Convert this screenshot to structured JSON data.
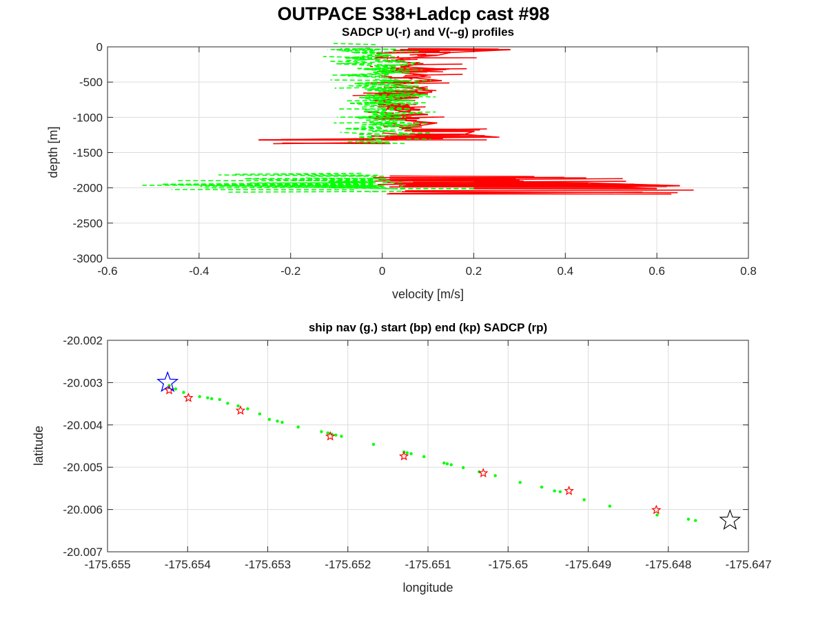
{
  "figure": {
    "title": "OUTPACE S38+Ladcp cast #98"
  },
  "chart_data": [
    {
      "type": "line",
      "title": "SADCP U(-r) and V(--g) profiles",
      "xlabel": "velocity [m/s]",
      "ylabel": "depth [m]",
      "xlim": [
        -0.6,
        0.8
      ],
      "ylim": [
        -3000,
        0
      ],
      "xticks": [
        "-0.6",
        "-0.4",
        "-0.2",
        "0",
        "0.2",
        "0.4",
        "0.6",
        "0.8"
      ],
      "yticks": [
        "0",
        "-500",
        "-1000",
        "-1500",
        "-2000",
        "-2500",
        "-3000"
      ],
      "xtick_values": [
        -0.6,
        -0.4,
        -0.2,
        0,
        0.2,
        0.4,
        0.6,
        0.8
      ],
      "ytick_values": [
        0,
        -500,
        -1000,
        -1500,
        -2000,
        -2500,
        -3000
      ],
      "grid": true,
      "series": [
        {
          "style": "solid",
          "color": "#ff0000",
          "depth": [
            -40,
            -80,
            -120,
            -160,
            -200,
            -240,
            -280,
            -320,
            -360,
            -400,
            -440,
            -480,
            -520,
            -560,
            -600,
            -640,
            -680,
            -720,
            -760,
            -800,
            -840,
            -880,
            -920,
            -960,
            -1000,
            -1040,
            -1080,
            -1120,
            -1160,
            -1200,
            -1240,
            -1280,
            -1320
          ],
          "u": [
            0.28,
            0.15,
            0.12,
            0.05,
            0.02,
            0.09,
            0.04,
            0.14,
            0.03,
            0.1,
            0.07,
            0.13,
            0.02,
            0.06,
            0.1,
            0.0,
            0.04,
            0.08,
            -0.02,
            0.03,
            0.06,
            0.01,
            0.05,
            0.1,
            -0.03,
            0.04,
            0.12,
            0.08,
            0.05,
            0.2,
            0.18,
            0.25,
            -0.27
          ]
        },
        {
          "style": "dashed",
          "color": "#00ff00",
          "depth": [
            -40,
            -80,
            -120,
            -160,
            -200,
            -240,
            -280,
            -320,
            -360,
            -400,
            -440,
            -480,
            -520,
            -560,
            -600,
            -640,
            -680,
            -720,
            -760,
            -800,
            -840,
            -880,
            -920,
            -960,
            -1000,
            -1040,
            -1080,
            -1120,
            -1160,
            -1200,
            -1240,
            -1280,
            -1320
          ],
          "v": [
            -0.1,
            -0.06,
            0.02,
            -0.08,
            0.05,
            -0.1,
            0.03,
            -0.04,
            0.06,
            -0.09,
            0.01,
            0.04,
            -0.06,
            0.08,
            -0.03,
            0.02,
            0.1,
            -0.05,
            0.07,
            -0.07,
            0.0,
            0.06,
            -0.04,
            0.03,
            -0.06,
            0.05,
            -0.02,
            0.08,
            -0.08,
            0.02,
            0.06,
            -0.05,
            0.0
          ]
        },
        {
          "style": "solid",
          "color": "#ff0000",
          "depth": [
            -1870,
            -1890,
            -1910,
            -1930,
            -1950,
            -1970,
            -1990,
            -2010
          ],
          "u": [
            0.25,
            0.3,
            0.22,
            0.45,
            0.55,
            0.65,
            0.5,
            0.6
          ]
        },
        {
          "style": "dashed",
          "color": "#00ff00",
          "depth": [
            -1870,
            -1890,
            -1910,
            -1930,
            -1950,
            -1970,
            -1990,
            -2010
          ],
          "v": [
            -0.3,
            -0.2,
            -0.05,
            -0.12,
            -0.48,
            -0.35,
            -0.15,
            0.03
          ]
        }
      ]
    },
    {
      "type": "scatter",
      "title": "ship nav (g.) start (bp) end (kp) SADCP (rp)",
      "xlabel": "longitude",
      "ylabel": "latitude",
      "xlim": [
        -175.655,
        -175.647
      ],
      "ylim": [
        -20.007,
        -20.002
      ],
      "xticks": [
        "-175.655",
        "-175.654",
        "-175.653",
        "-175.652",
        "-175.651",
        "-175.65",
        "-175.649",
        "-175.648",
        "-175.647"
      ],
      "yticks": [
        "-20.002",
        "-20.003",
        "-20.004",
        "-20.005",
        "-20.006",
        "-20.007"
      ],
      "xtick_values": [
        -175.655,
        -175.654,
        -175.653,
        -175.652,
        -175.651,
        -175.65,
        -175.649,
        -175.648,
        -175.647
      ],
      "ytick_values": [
        -20.002,
        -20.003,
        -20.004,
        -20.005,
        -20.006,
        -20.007
      ],
      "grid": true,
      "series": [
        {
          "marker": "dot",
          "color": "#00ff00",
          "lon": [
            -175.65423,
            -175.65415,
            -175.65405,
            -175.65385,
            -175.65375,
            -175.6537,
            -175.6536,
            -175.6535,
            -175.65337,
            -175.65325,
            -175.6531,
            -175.65298,
            -175.65288,
            -175.65282,
            -175.65262,
            -175.65233,
            -175.65225,
            -175.6522,
            -175.65215,
            -175.65208,
            -175.65168,
            -175.6513,
            -175.65126,
            -175.65121,
            -175.65105,
            -175.6508,
            -175.65076,
            -175.65071,
            -175.65056,
            -175.65036,
            -175.65016,
            -175.64985,
            -175.64958,
            -175.64942,
            -175.64935,
            -175.64905,
            -175.64873,
            -175.64814,
            -175.64775,
            -175.64766
          ],
          "lat": [
            -20.00307,
            -20.00315,
            -20.00323,
            -20.00333,
            -20.00336,
            -20.00338,
            -20.0034,
            -20.00349,
            -20.00355,
            -20.00362,
            -20.00374,
            -20.00387,
            -20.00391,
            -20.00394,
            -20.00405,
            -20.00416,
            -20.00419,
            -20.00422,
            -20.00424,
            -20.00427,
            -20.00446,
            -20.00464,
            -20.00466,
            -20.00468,
            -20.00475,
            -20.0049,
            -20.00492,
            -20.00494,
            -20.00501,
            -20.00511,
            -20.0052,
            -20.00536,
            -20.00547,
            -20.00556,
            -20.00558,
            -20.00577,
            -20.00592,
            -20.00613,
            -20.00623,
            -20.00626
          ]
        },
        {
          "marker": "star-red",
          "color": "#ff0000",
          "lon": [
            -175.65423,
            -175.65399,
            -175.65334,
            -175.65222,
            -175.6513,
            -175.65031,
            -175.64924,
            -175.64815
          ],
          "lat": [
            -20.00318,
            -20.00336,
            -20.00366,
            -20.00427,
            -20.00474,
            -20.00514,
            -20.00556,
            -20.00601
          ]
        },
        {
          "marker": "star-blue",
          "color": "#0000ff",
          "lon": [
            -175.65425
          ],
          "lat": [
            -20.003
          ]
        },
        {
          "marker": "star-black",
          "color": "#000000",
          "lon": [
            -175.64723
          ],
          "lat": [
            -20.00626
          ]
        }
      ]
    }
  ]
}
